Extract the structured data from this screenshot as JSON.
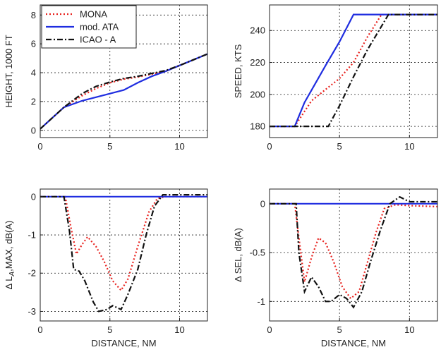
{
  "chart_data": [
    {
      "type": "line",
      "ylabel": "HEIGHT, 1000 FT",
      "xlabel": "",
      "xlim": [
        0,
        12
      ],
      "ylim": [
        -0.5,
        8.7
      ],
      "xticks": [
        0,
        5,
        10
      ],
      "yticks": [
        0,
        2,
        4,
        6,
        8
      ],
      "grid": true,
      "legend": "top-left",
      "series": [
        {
          "name": "MONA",
          "style": "dotted",
          "color": "#e8211d",
          "x": [
            0,
            1.7,
            3,
            4,
            5,
            6,
            7,
            8,
            9,
            10,
            11,
            12
          ],
          "y": [
            0.1,
            1.6,
            2.4,
            2.9,
            3.3,
            3.55,
            3.7,
            3.9,
            4.1,
            4.5,
            4.9,
            5.3
          ]
        },
        {
          "name": "mod. ATA",
          "style": "solid",
          "color": "#1f2de0",
          "x": [
            0,
            1.7,
            3,
            4,
            5,
            6,
            7,
            8,
            9,
            10,
            11,
            12
          ],
          "y": [
            0.1,
            1.6,
            2.05,
            2.3,
            2.55,
            2.8,
            3.3,
            3.75,
            4.1,
            4.5,
            4.9,
            5.3
          ]
        },
        {
          "name": "ICAO - A",
          "style": "dashdot",
          "color": "#111111",
          "x": [
            0,
            1.7,
            3,
            4,
            5,
            6,
            7,
            8,
            9,
            10,
            11,
            12
          ],
          "y": [
            0.1,
            1.6,
            2.55,
            3.05,
            3.35,
            3.6,
            3.75,
            3.95,
            4.15,
            4.5,
            4.9,
            5.3
          ]
        }
      ]
    },
    {
      "type": "line",
      "ylabel": "SPEED, KTS",
      "xlabel": "",
      "xlim": [
        0,
        12
      ],
      "ylim": [
        173,
        256
      ],
      "xticks": [
        0,
        5,
        10
      ],
      "yticks": [
        180,
        200,
        220,
        240
      ],
      "grid": true,
      "series": [
        {
          "name": "MONA",
          "style": "dotted",
          "color": "#e8211d",
          "x": [
            0,
            1.8,
            3,
            4,
            5,
            6,
            7,
            8,
            12
          ],
          "y": [
            180,
            180,
            196,
            203,
            210,
            220,
            236,
            250,
            250
          ]
        },
        {
          "name": "mod. ATA",
          "style": "solid",
          "color": "#1f2de0",
          "x": [
            0,
            1.8,
            2.5,
            4,
            5,
            6,
            12
          ],
          "y": [
            180,
            180,
            195,
            218,
            233,
            250,
            250
          ]
        },
        {
          "name": "ICAO - A",
          "style": "dashdot",
          "color": "#111111",
          "x": [
            0,
            4.2,
            5,
            6,
            7,
            8.5,
            12
          ],
          "y": [
            180,
            180,
            193,
            211,
            228,
            250,
            250
          ]
        }
      ]
    },
    {
      "type": "line",
      "ylabel": "Δ L_A,MAX, dB(A)",
      "xlabel": "DISTANCE, NM",
      "xlim": [
        0,
        12
      ],
      "ylim": [
        -3.25,
        0.2
      ],
      "xticks": [
        0,
        5,
        10
      ],
      "yticks": [
        -3,
        -2,
        -1,
        0
      ],
      "grid": true,
      "series": [
        {
          "name": "MONA",
          "style": "dotted",
          "color": "#e8211d",
          "x": [
            0,
            1.8,
            2.2,
            2.6,
            3.0,
            3.4,
            4.0,
            4.6,
            5.2,
            5.8,
            6.3,
            7.0,
            7.8,
            8.4,
            9,
            12
          ],
          "y": [
            0,
            0,
            -0.8,
            -1.5,
            -1.25,
            -1.05,
            -1.3,
            -1.7,
            -2.2,
            -2.45,
            -2.15,
            -1.3,
            -0.4,
            -0.05,
            0,
            0
          ]
        },
        {
          "name": "mod. ATA",
          "style": "solid",
          "color": "#1f2de0",
          "x": [
            0,
            12
          ],
          "y": [
            0,
            0
          ]
        },
        {
          "name": "ICAO - A",
          "style": "dashdot",
          "color": "#111111",
          "x": [
            0,
            1.7,
            2.1,
            2.4,
            2.8,
            3.2,
            3.8,
            4.2,
            4.8,
            5.2,
            5.8,
            6.3,
            7.0,
            7.6,
            8.2,
            8.8,
            12
          ],
          "y": [
            0,
            0,
            -0.9,
            -1.9,
            -1.95,
            -2.2,
            -2.75,
            -3.0,
            -2.95,
            -2.85,
            -2.95,
            -2.55,
            -1.9,
            -1.0,
            -0.25,
            0.05,
            0.05
          ]
        }
      ]
    },
    {
      "type": "line",
      "ylabel": "Δ SEL, dB(A)",
      "xlabel": "DISTANCE, NM",
      "xlim": [
        0,
        12
      ],
      "ylim": [
        -1.2,
        0.15
      ],
      "xticks": [
        0,
        5,
        10
      ],
      "yticks": [
        -1,
        -0.5,
        0
      ],
      "grid": true,
      "series": [
        {
          "name": "MONA",
          "style": "dotted",
          "color": "#e8211d",
          "x": [
            0,
            1.8,
            2.1,
            2.5,
            3.0,
            3.5,
            4.0,
            4.6,
            5.2,
            5.8,
            6.4,
            7.0,
            7.6,
            8.2,
            9,
            10,
            12
          ],
          "y": [
            0,
            0,
            -0.35,
            -0.8,
            -0.55,
            -0.35,
            -0.4,
            -0.6,
            -0.85,
            -0.97,
            -0.9,
            -0.6,
            -0.3,
            -0.05,
            -0.01,
            -0.02,
            -0.03
          ]
        },
        {
          "name": "mod. ATA",
          "style": "solid",
          "color": "#1f2de0",
          "x": [
            0,
            12
          ],
          "y": [
            0,
            0
          ]
        },
        {
          "name": "ICAO - A",
          "style": "dashdot",
          "color": "#111111",
          "x": [
            0,
            1.9,
            2.1,
            2.5,
            3.0,
            3.5,
            4.0,
            4.4,
            5.0,
            5.5,
            6.0,
            6.6,
            7.2,
            7.9,
            8.6,
            9.3,
            10,
            11,
            12
          ],
          "y": [
            0,
            0,
            -0.5,
            -0.9,
            -0.75,
            -0.85,
            -1.0,
            -1.0,
            -0.93,
            -0.97,
            -1.06,
            -0.9,
            -0.6,
            -0.28,
            0.0,
            0.07,
            0.02,
            0.02,
            0.02
          ]
        }
      ]
    }
  ]
}
